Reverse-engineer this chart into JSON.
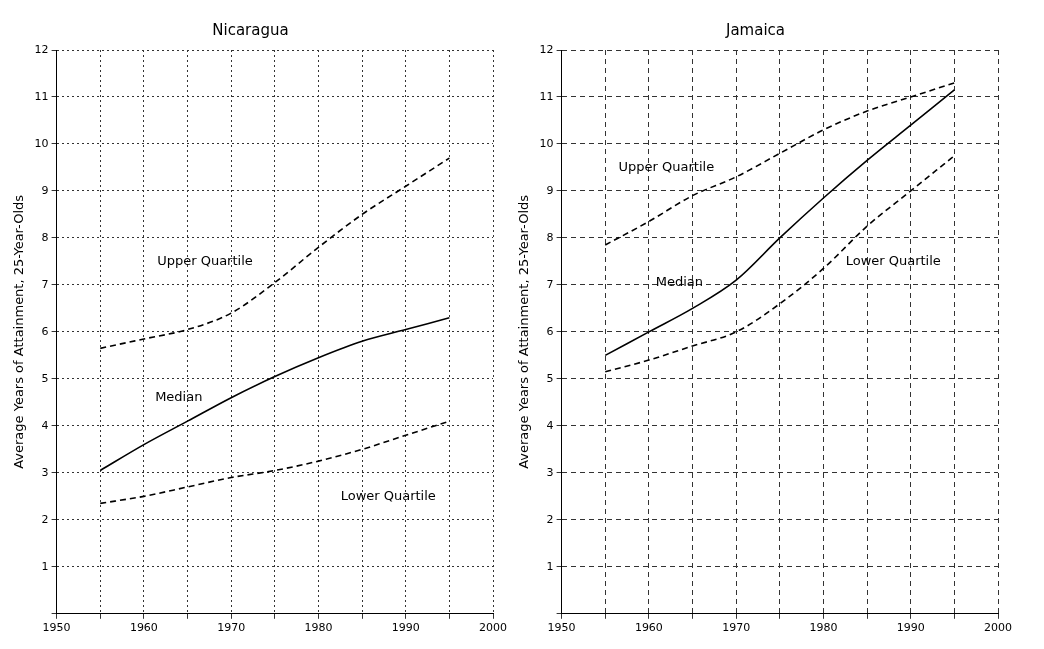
{
  "chart_data": [
    {
      "type": "line",
      "title": "Nicaragua",
      "ylabel": "Average Years of Attainment, 25-Year-Olds",
      "x": [
        1955,
        1960,
        1965,
        1970,
        1975,
        1980,
        1985,
        1990,
        1995
      ],
      "xlim": [
        1950,
        2000
      ],
      "xticks": [
        1950,
        {
          "value": 1955,
          "label": null
        },
        1960,
        {
          "value": 1965,
          "label": null
        },
        1970,
        {
          "value": 1975,
          "label": null
        },
        1980,
        {
          "value": 1985,
          "label": null
        },
        1990,
        {
          "value": 1995,
          "label": null
        },
        2000
      ],
      "ylim": [
        0,
        12
      ],
      "yticks": [
        {
          "value": 0,
          "label": null
        },
        1,
        2,
        3,
        4,
        5,
        6,
        7,
        8,
        9,
        10,
        11,
        12
      ],
      "grid": true,
      "series": [
        {
          "name": "Upper Quartile",
          "color": "#000000",
          "line_style": "dashed",
          "values": [
            5.65,
            5.85,
            6.05,
            6.4,
            7.05,
            7.8,
            8.5,
            9.1,
            9.7
          ]
        },
        {
          "name": "Median",
          "color": "#000000",
          "line_style": "solid",
          "values": [
            3.05,
            3.6,
            4.1,
            4.6,
            5.05,
            5.45,
            5.8,
            6.05,
            6.3
          ]
        },
        {
          "name": "Lower Quartile",
          "color": "#000000",
          "line_style": "dashed",
          "values": [
            2.35,
            2.5,
            2.7,
            2.9,
            3.05,
            3.25,
            3.5,
            3.8,
            4.1
          ]
        }
      ]
    },
    {
      "type": "line",
      "title": "Jamaica",
      "ylabel": "Average Years of Attainment, 25-Year-Olds",
      "x": [
        1955,
        1960,
        1965,
        1970,
        1975,
        1980,
        1985,
        1990,
        1995
      ],
      "xlim": [
        1950,
        2000
      ],
      "xticks": [
        1950,
        {
          "value": 1955,
          "label": null
        },
        1960,
        {
          "value": 1965,
          "label": null
        },
        1970,
        {
          "value": 1975,
          "label": null
        },
        1980,
        {
          "value": 1985,
          "label": null
        },
        1990,
        {
          "value": 1995,
          "label": null
        },
        2000
      ],
      "ylim": [
        0,
        12
      ],
      "yticks": [
        {
          "value": 0,
          "label": null
        },
        1,
        2,
        3,
        4,
        5,
        6,
        7,
        8,
        9,
        10,
        11,
        12
      ],
      "grid": true,
      "series": [
        {
          "name": "Upper Quartile",
          "color": "#000000",
          "line_style": "dashed",
          "values": [
            7.85,
            8.35,
            8.9,
            9.3,
            9.8,
            10.3,
            10.7,
            11.0,
            11.3
          ]
        },
        {
          "name": "Median",
          "color": "#000000",
          "line_style": "solid",
          "values": [
            5.5,
            6.0,
            6.5,
            7.1,
            8.0,
            8.85,
            9.65,
            10.4,
            11.15
          ]
        },
        {
          "name": "Lower Quartile",
          "color": "#000000",
          "line_style": "dashed",
          "values": [
            5.15,
            5.4,
            5.7,
            6.0,
            6.6,
            7.35,
            8.25,
            9.0,
            9.75
          ]
        }
      ]
    }
  ]
}
